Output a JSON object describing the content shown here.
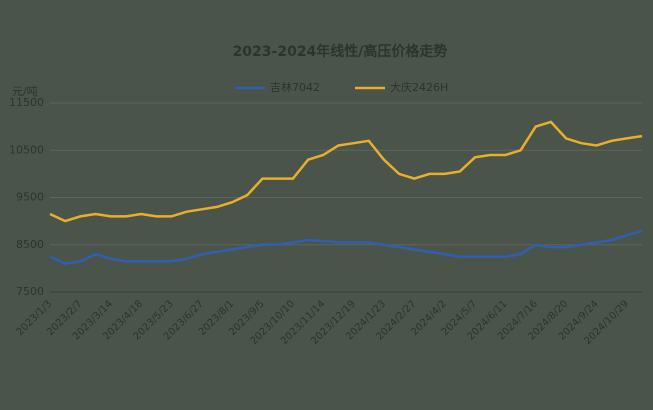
{
  "chart_data": {
    "type": "line",
    "title": "2023-2024年线性/高压价格走势",
    "y_label": "元/吨",
    "categories": [
      "2023/1/3",
      null,
      "2023/2/7",
      null,
      "2023/3/14",
      null,
      "2023/4/18",
      null,
      "2023/5/23",
      null,
      "2023/6/27",
      null,
      "2023/8/1",
      null,
      "2023/9/5",
      null,
      "2023/10/10",
      null,
      "2023/11/14",
      null,
      "2023/12/19",
      null,
      "2024/1/23",
      null,
      "2024/2/27",
      null,
      "2024/4/2",
      null,
      "2024/5/7",
      null,
      "2024/6/11",
      null,
      "2024/7/16",
      null,
      "2024/8/20",
      null,
      "2024/9/24",
      null,
      "2024/10/29",
      null
    ],
    "series": [
      {
        "name": "吉林7042",
        "color": "#2f5fb3",
        "values": [
          8250,
          8100,
          8150,
          8300,
          8200,
          8150,
          8150,
          8150,
          8150,
          8200,
          8300,
          8350,
          8400,
          8450,
          8500,
          8500,
          8550,
          8600,
          8580,
          8550,
          8550,
          8550,
          8500,
          8450,
          8400,
          8350,
          8300,
          8250,
          8250,
          8250,
          8250,
          8300,
          8500,
          8450,
          8450,
          8500,
          8550,
          8600,
          8700,
          8800
        ]
      },
      {
        "name": "大庆2426H",
        "color": "#e8b02a",
        "values": [
          9150,
          9000,
          9100,
          9150,
          9100,
          9100,
          9150,
          9100,
          9100,
          9200,
          9250,
          9300,
          9400,
          9550,
          9900,
          9900,
          9900,
          10300,
          10400,
          10600,
          10650,
          10700,
          10300,
          10000,
          9900,
          10000,
          10000,
          10050,
          10350,
          10400,
          10400,
          10500,
          11000,
          11100,
          10750,
          10650,
          10600,
          10700,
          10750,
          10800
        ]
      }
    ],
    "ylim": [
      7500,
      11500
    ],
    "yticks": [
      7500,
      8500,
      9500,
      10500,
      11500
    ],
    "grid": true
  }
}
